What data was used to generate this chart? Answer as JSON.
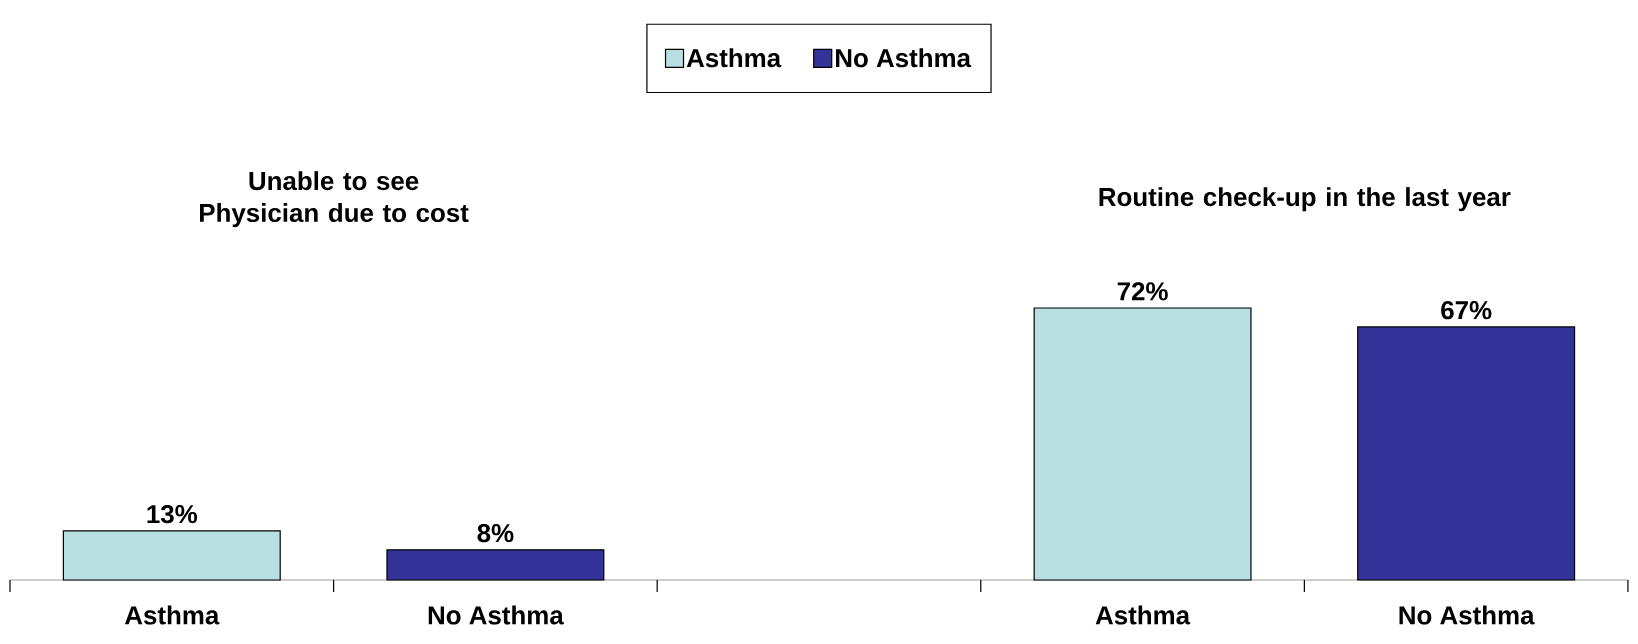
{
  "chart_data": {
    "type": "bar",
    "categories": [
      "Asthma",
      "No Asthma",
      null,
      "Asthma",
      "No Asthma"
    ],
    "series": [
      {
        "name": "Asthma",
        "color": "#b8e0e2",
        "values": [
          13,
          null,
          null,
          72,
          null
        ],
        "value_labels": [
          "13%",
          null,
          null,
          "72%",
          null
        ]
      },
      {
        "name": "No Asthma",
        "color": "#333399",
        "values": [
          null,
          8,
          null,
          null,
          67
        ],
        "value_labels": [
          null,
          "8%",
          null,
          null,
          "67%"
        ]
      }
    ],
    "annotations": [
      "Unable to see Physician due to cost",
      "Routine check-up in the last year"
    ],
    "legend": "top"
  }
}
